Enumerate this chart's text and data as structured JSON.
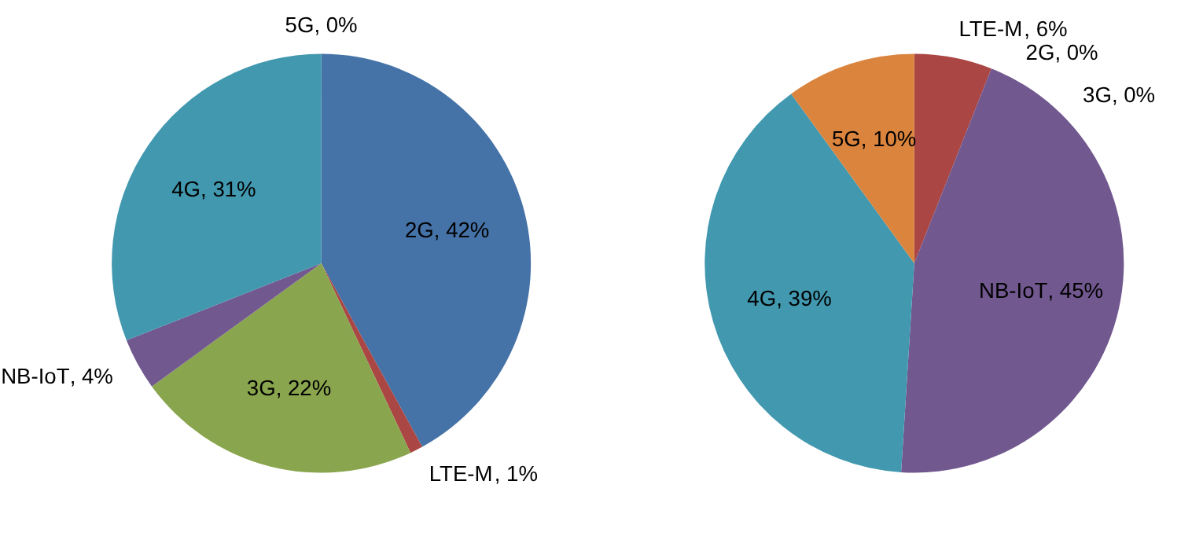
{
  "chart_data": [
    {
      "type": "pie",
      "categories": [
        "2G",
        "LTE-M",
        "3G",
        "NB-IoT",
        "4G",
        "5G"
      ],
      "values": [
        42,
        1,
        22,
        4,
        31,
        0
      ],
      "colors": [
        "#4572a7",
        "#aa4643",
        "#89a54e",
        "#71588f",
        "#4198af",
        "#db843d"
      ],
      "value_labels": [
        ", 42%",
        ", 1%",
        ", 22%",
        ", 4%",
        ", 31%",
        ", 0%"
      ]
    },
    {
      "type": "pie",
      "categories": [
        "LTE-M",
        "2G",
        "3G",
        "NB-IoT",
        "4G",
        "5G"
      ],
      "values": [
        6,
        0,
        0,
        45,
        39,
        10
      ],
      "colors": [
        "#aa4643",
        "#4572a7",
        "#89a54e",
        "#71588f",
        "#4198af",
        "#db843d"
      ],
      "value_labels": [
        ", 6%",
        ", 0%",
        ", 0%",
        ", 45%",
        ", 39%",
        ", 10%"
      ]
    }
  ]
}
